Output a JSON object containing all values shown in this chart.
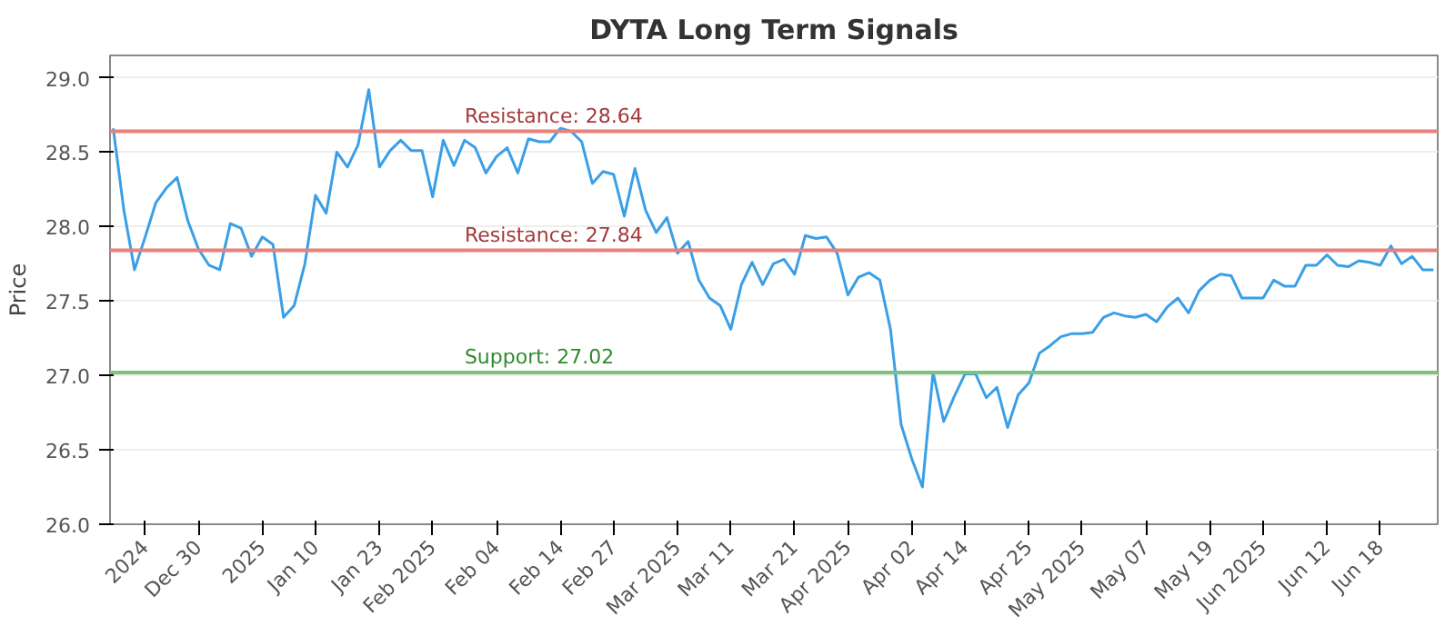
{
  "chart_data": {
    "type": "line",
    "title": "DYTA Long Term Signals",
    "ylabel": "Price",
    "categories": [
      null,
      null,
      null,
      "2024",
      null,
      null,
      null,
      null,
      "Dec 30",
      null,
      null,
      null,
      null,
      null,
      "2025",
      null,
      null,
      null,
      null,
      "Jan 10",
      null,
      null,
      null,
      null,
      null,
      "Jan 23",
      null,
      null,
      null,
      null,
      "Feb 2025",
      null,
      null,
      null,
      null,
      null,
      "Feb 04",
      null,
      null,
      null,
      null,
      null,
      "Feb 14",
      null,
      null,
      null,
      null,
      "Feb 27",
      null,
      null,
      null,
      null,
      null,
      "Mar 2025",
      null,
      null,
      null,
      null,
      "Mar 11",
      null,
      null,
      null,
      null,
      null,
      "Mar 21",
      null,
      null,
      null,
      null,
      "Apr 2025",
      null,
      null,
      null,
      null,
      null,
      "Apr 02",
      null,
      null,
      null,
      null,
      "Apr 14",
      null,
      null,
      null,
      null,
      null,
      "Apr 25",
      null,
      null,
      null,
      null,
      "May 2025",
      null,
      null,
      null,
      null,
      null,
      "May 07",
      null,
      null,
      null,
      null,
      null,
      "May 19",
      null,
      null,
      null,
      null,
      "Jun 2025",
      null,
      null,
      null,
      null,
      null,
      "Jun 12",
      null,
      null,
      null,
      null,
      "Jun 18",
      null,
      null,
      null,
      null,
      null
    ],
    "series": [
      {
        "color": "#3a9fe6",
        "values": [
          28.66,
          28.11,
          27.71,
          27.93,
          28.16,
          28.26,
          28.33,
          28.04,
          27.85,
          27.74,
          27.71,
          28.02,
          27.99,
          27.8,
          27.93,
          27.88,
          27.39,
          27.47,
          27.75,
          28.21,
          28.09,
          28.5,
          28.4,
          28.55,
          28.92,
          28.4,
          28.51,
          28.58,
          28.51,
          28.51,
          28.2,
          28.58,
          28.41,
          28.58,
          28.53,
          28.36,
          28.47,
          28.53,
          28.36,
          28.59,
          28.57,
          28.57,
          28.66,
          28.64,
          28.57,
          28.29,
          28.37,
          28.35,
          28.07,
          28.39,
          28.11,
          27.96,
          28.06,
          27.82,
          27.9,
          27.64,
          27.52,
          27.47,
          27.31,
          27.61,
          27.76,
          27.61,
          27.75,
          27.78,
          27.68,
          27.94,
          27.92,
          27.93,
          27.82,
          27.54,
          27.66,
          27.69,
          27.64,
          27.31,
          26.67,
          26.44,
          26.25,
          27.02,
          26.69,
          26.86,
          27.01,
          27.01,
          26.85,
          26.92,
          26.65,
          26.87,
          26.95,
          27.15,
          27.2,
          27.26,
          27.28,
          27.28,
          27.29,
          27.39,
          27.42,
          27.4,
          27.39,
          27.41,
          27.36,
          27.46,
          27.52,
          27.42,
          27.57,
          27.64,
          27.68,
          27.67,
          27.52,
          27.52,
          27.52,
          27.64,
          27.6,
          27.6,
          27.74,
          27.74,
          27.81,
          27.74,
          27.73,
          27.77,
          27.76,
          27.74,
          27.87,
          27.75,
          27.8,
          27.71,
          27.71
        ]
      }
    ],
    "ylim": [
      26.0,
      29.15
    ],
    "yticks": [
      {
        "value": 26.0,
        "label": "26.0"
      },
      {
        "value": 26.5,
        "label": "26.5"
      },
      {
        "value": 27.0,
        "label": "27.0"
      },
      {
        "value": 27.5,
        "label": "27.5"
      },
      {
        "value": 28.0,
        "label": "28.0"
      },
      {
        "value": 28.5,
        "label": "28.5"
      },
      {
        "value": 29.0,
        "label": "29.0"
      }
    ],
    "ref_lines": [
      {
        "axis": "y",
        "value": 28.64,
        "label": "Resistance: 28.64",
        "color": "#e8807c"
      },
      {
        "axis": "y",
        "value": 27.84,
        "label": "Resistance: 27.84",
        "color": "#e8807c"
      },
      {
        "axis": "y",
        "value": 27.02,
        "label": "Support: 27.02",
        "color": "#7cc47a"
      }
    ],
    "grid": "y",
    "line_style": "solid"
  }
}
